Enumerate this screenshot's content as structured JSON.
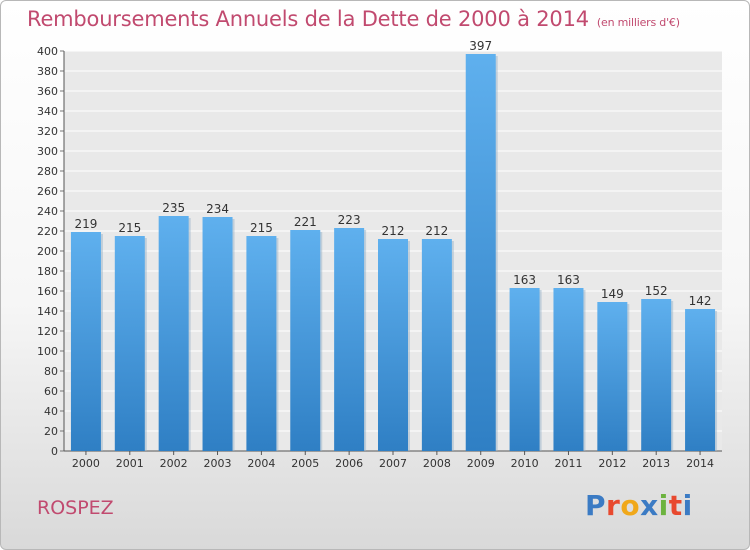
{
  "title": "Remboursements Annuels de la Dette de 2000 à 2014",
  "unit_label": "(en milliers d'€)",
  "commune": "ROSPEZ",
  "logo": {
    "text": "Proxiti",
    "colors": [
      "#3b7bc4",
      "#e8492f",
      "#f0a81a",
      "#3b7bc4",
      "#6cb33f",
      "#e8492f",
      "#3b7bc4"
    ]
  },
  "colors": {
    "title": "#c14a6f",
    "bar": "#4a9fe0"
  },
  "chart_data": {
    "type": "bar",
    "categories": [
      "2000",
      "2001",
      "2002",
      "2003",
      "2004",
      "2005",
      "2006",
      "2007",
      "2008",
      "2009",
      "2010",
      "2011",
      "2012",
      "2013",
      "2014"
    ],
    "values": [
      219,
      215,
      235,
      234,
      215,
      221,
      223,
      212,
      212,
      397,
      163,
      163,
      149,
      152,
      142
    ],
    "ylim": [
      0,
      400
    ],
    "yticks": [
      0,
      20,
      40,
      60,
      80,
      100,
      120,
      140,
      160,
      180,
      200,
      220,
      240,
      260,
      280,
      300,
      320,
      340,
      360,
      380,
      400
    ],
    "grid": true,
    "legend": "none"
  }
}
